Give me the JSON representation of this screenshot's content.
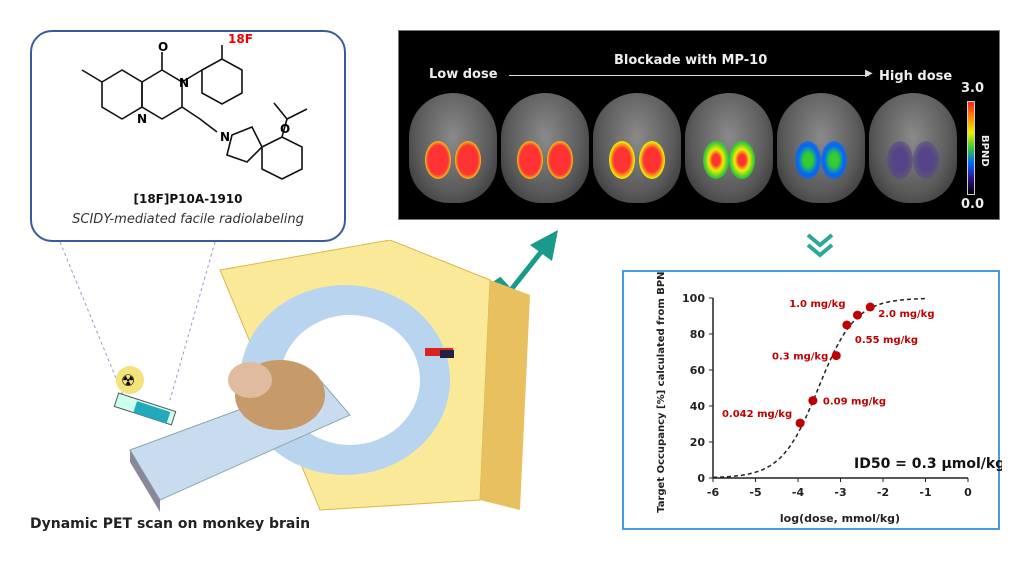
{
  "molecule": {
    "fluorine_label": "18F",
    "name": "[18F]P10A-1910",
    "subtitle": "SCIDY-mediated facile radiolabeling"
  },
  "pet_panel": {
    "low_label": "Low dose",
    "arrow_label": "Blockade with MP-10",
    "high_label": "High dose",
    "colorbar_max": "3.0",
    "colorbar_min": "0.0",
    "colorbar_label": "BPND"
  },
  "caption": "Dynamic PET scan on monkey brain",
  "chart_data": {
    "type": "scatter",
    "xlabel": "log(dose, mmol/kg)",
    "ylabel": "Target Occupancy [%] calculated from BPND",
    "xlim": [
      -6,
      0
    ],
    "ylim": [
      0,
      100
    ],
    "xticks": [
      "-6",
      "-5",
      "-4",
      "-3",
      "-2",
      "-1",
      "0"
    ],
    "yticks": [
      "0",
      "20",
      "40",
      "60",
      "80",
      "100"
    ],
    "points": [
      {
        "x": -3.95,
        "y": 30.5,
        "label": "0.042 mg/kg"
      },
      {
        "x": -3.65,
        "y": 43,
        "label": "0.09 mg/kg"
      },
      {
        "x": -3.1,
        "y": 68,
        "label": "0.3 mg/kg"
      },
      {
        "x": -2.85,
        "y": 85,
        "label": "0.55 mg/kg"
      },
      {
        "x": -2.6,
        "y": 90.5,
        "label": "1.0 mg/kg"
      },
      {
        "x": -2.3,
        "y": 95,
        "label": "2.0 mg/kg"
      }
    ],
    "fit": {
      "style": "dashed sigmoid",
      "log_ID50": -3.52,
      "range": [
        -6,
        -1
      ]
    },
    "annotation": "ID50 = 0.3 µmol/kg",
    "point_color": "#c00000",
    "grid": false
  }
}
